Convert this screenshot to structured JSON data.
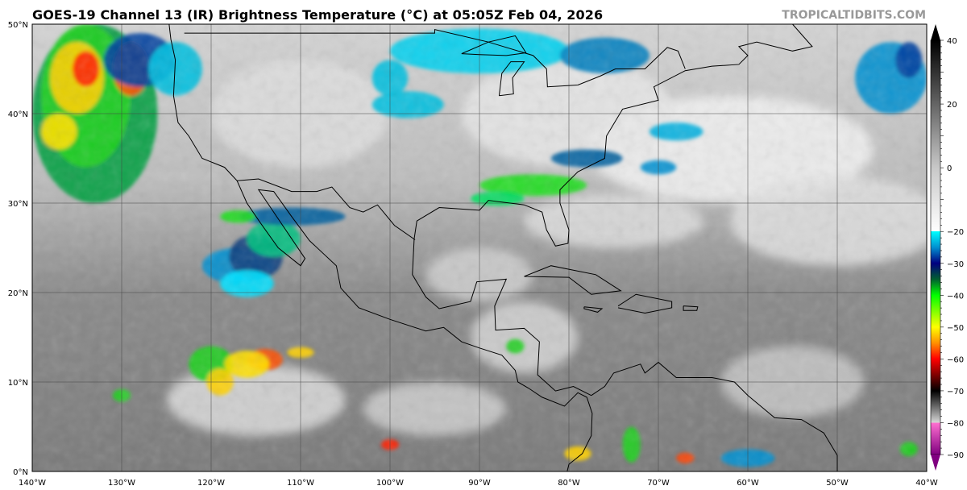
{
  "title": "GOES-19 Channel 13 (IR) Brightness Temperature (°C) at 05:05Z Feb 04, 2026",
  "watermark": "TROPICALTIDBITS.COM",
  "map": {
    "lon_range": [
      -140,
      -40
    ],
    "lat_range": [
      0,
      50
    ],
    "lat_labels": [
      {
        "value": 0,
        "label": "0°N"
      },
      {
        "value": 10,
        "label": "10°N"
      },
      {
        "value": 20,
        "label": "20°N"
      },
      {
        "value": 30,
        "label": "30°N"
      },
      {
        "value": 40,
        "label": "40°N"
      },
      {
        "value": 50,
        "label": "50°N"
      }
    ],
    "lon_labels": [
      {
        "value": -140,
        "label": "140°W"
      },
      {
        "value": -130,
        "label": "130°W"
      },
      {
        "value": -120,
        "label": "120°W"
      },
      {
        "value": -110,
        "label": "110°W"
      },
      {
        "value": -100,
        "label": "100°W"
      },
      {
        "value": -90,
        "label": "90°W"
      },
      {
        "value": -80,
        "label": "80°W"
      },
      {
        "value": -70,
        "label": "70°W"
      },
      {
        "value": -60,
        "label": "60°W"
      },
      {
        "value": -50,
        "label": "50°W"
      },
      {
        "value": -40,
        "label": "40°W"
      }
    ],
    "gridlines": true
  },
  "colorbar": {
    "range": [
      -90,
      40
    ],
    "ticks": [
      "40",
      "20",
      "0",
      "−20",
      "−30",
      "−40",
      "−50",
      "−60",
      "−70",
      "−80",
      "−90"
    ],
    "tick_values": [
      40,
      20,
      0,
      -20,
      -30,
      -40,
      -50,
      -60,
      -70,
      -80,
      -90
    ],
    "stops": [
      {
        "t": 40,
        "color": "#000000"
      },
      {
        "t": 0,
        "color": "#c8c8c8"
      },
      {
        "t": -20,
        "color": "#ffffff"
      },
      {
        "t": -20,
        "color": "#00ffff"
      },
      {
        "t": -25,
        "color": "#0090d0"
      },
      {
        "t": -30,
        "color": "#000080"
      },
      {
        "t": -35,
        "color": "#006030"
      },
      {
        "t": -40,
        "color": "#00ff00"
      },
      {
        "t": -50,
        "color": "#ffff00"
      },
      {
        "t": -55,
        "color": "#ff9000"
      },
      {
        "t": -60,
        "color": "#ff0000"
      },
      {
        "t": -70,
        "color": "#000000"
      },
      {
        "t": -76,
        "color": "#808080"
      },
      {
        "t": -80,
        "color": "#d8d8d8"
      },
      {
        "t": -80,
        "color": "#ff70d0"
      },
      {
        "t": -90,
        "color": "#800080"
      }
    ]
  }
}
